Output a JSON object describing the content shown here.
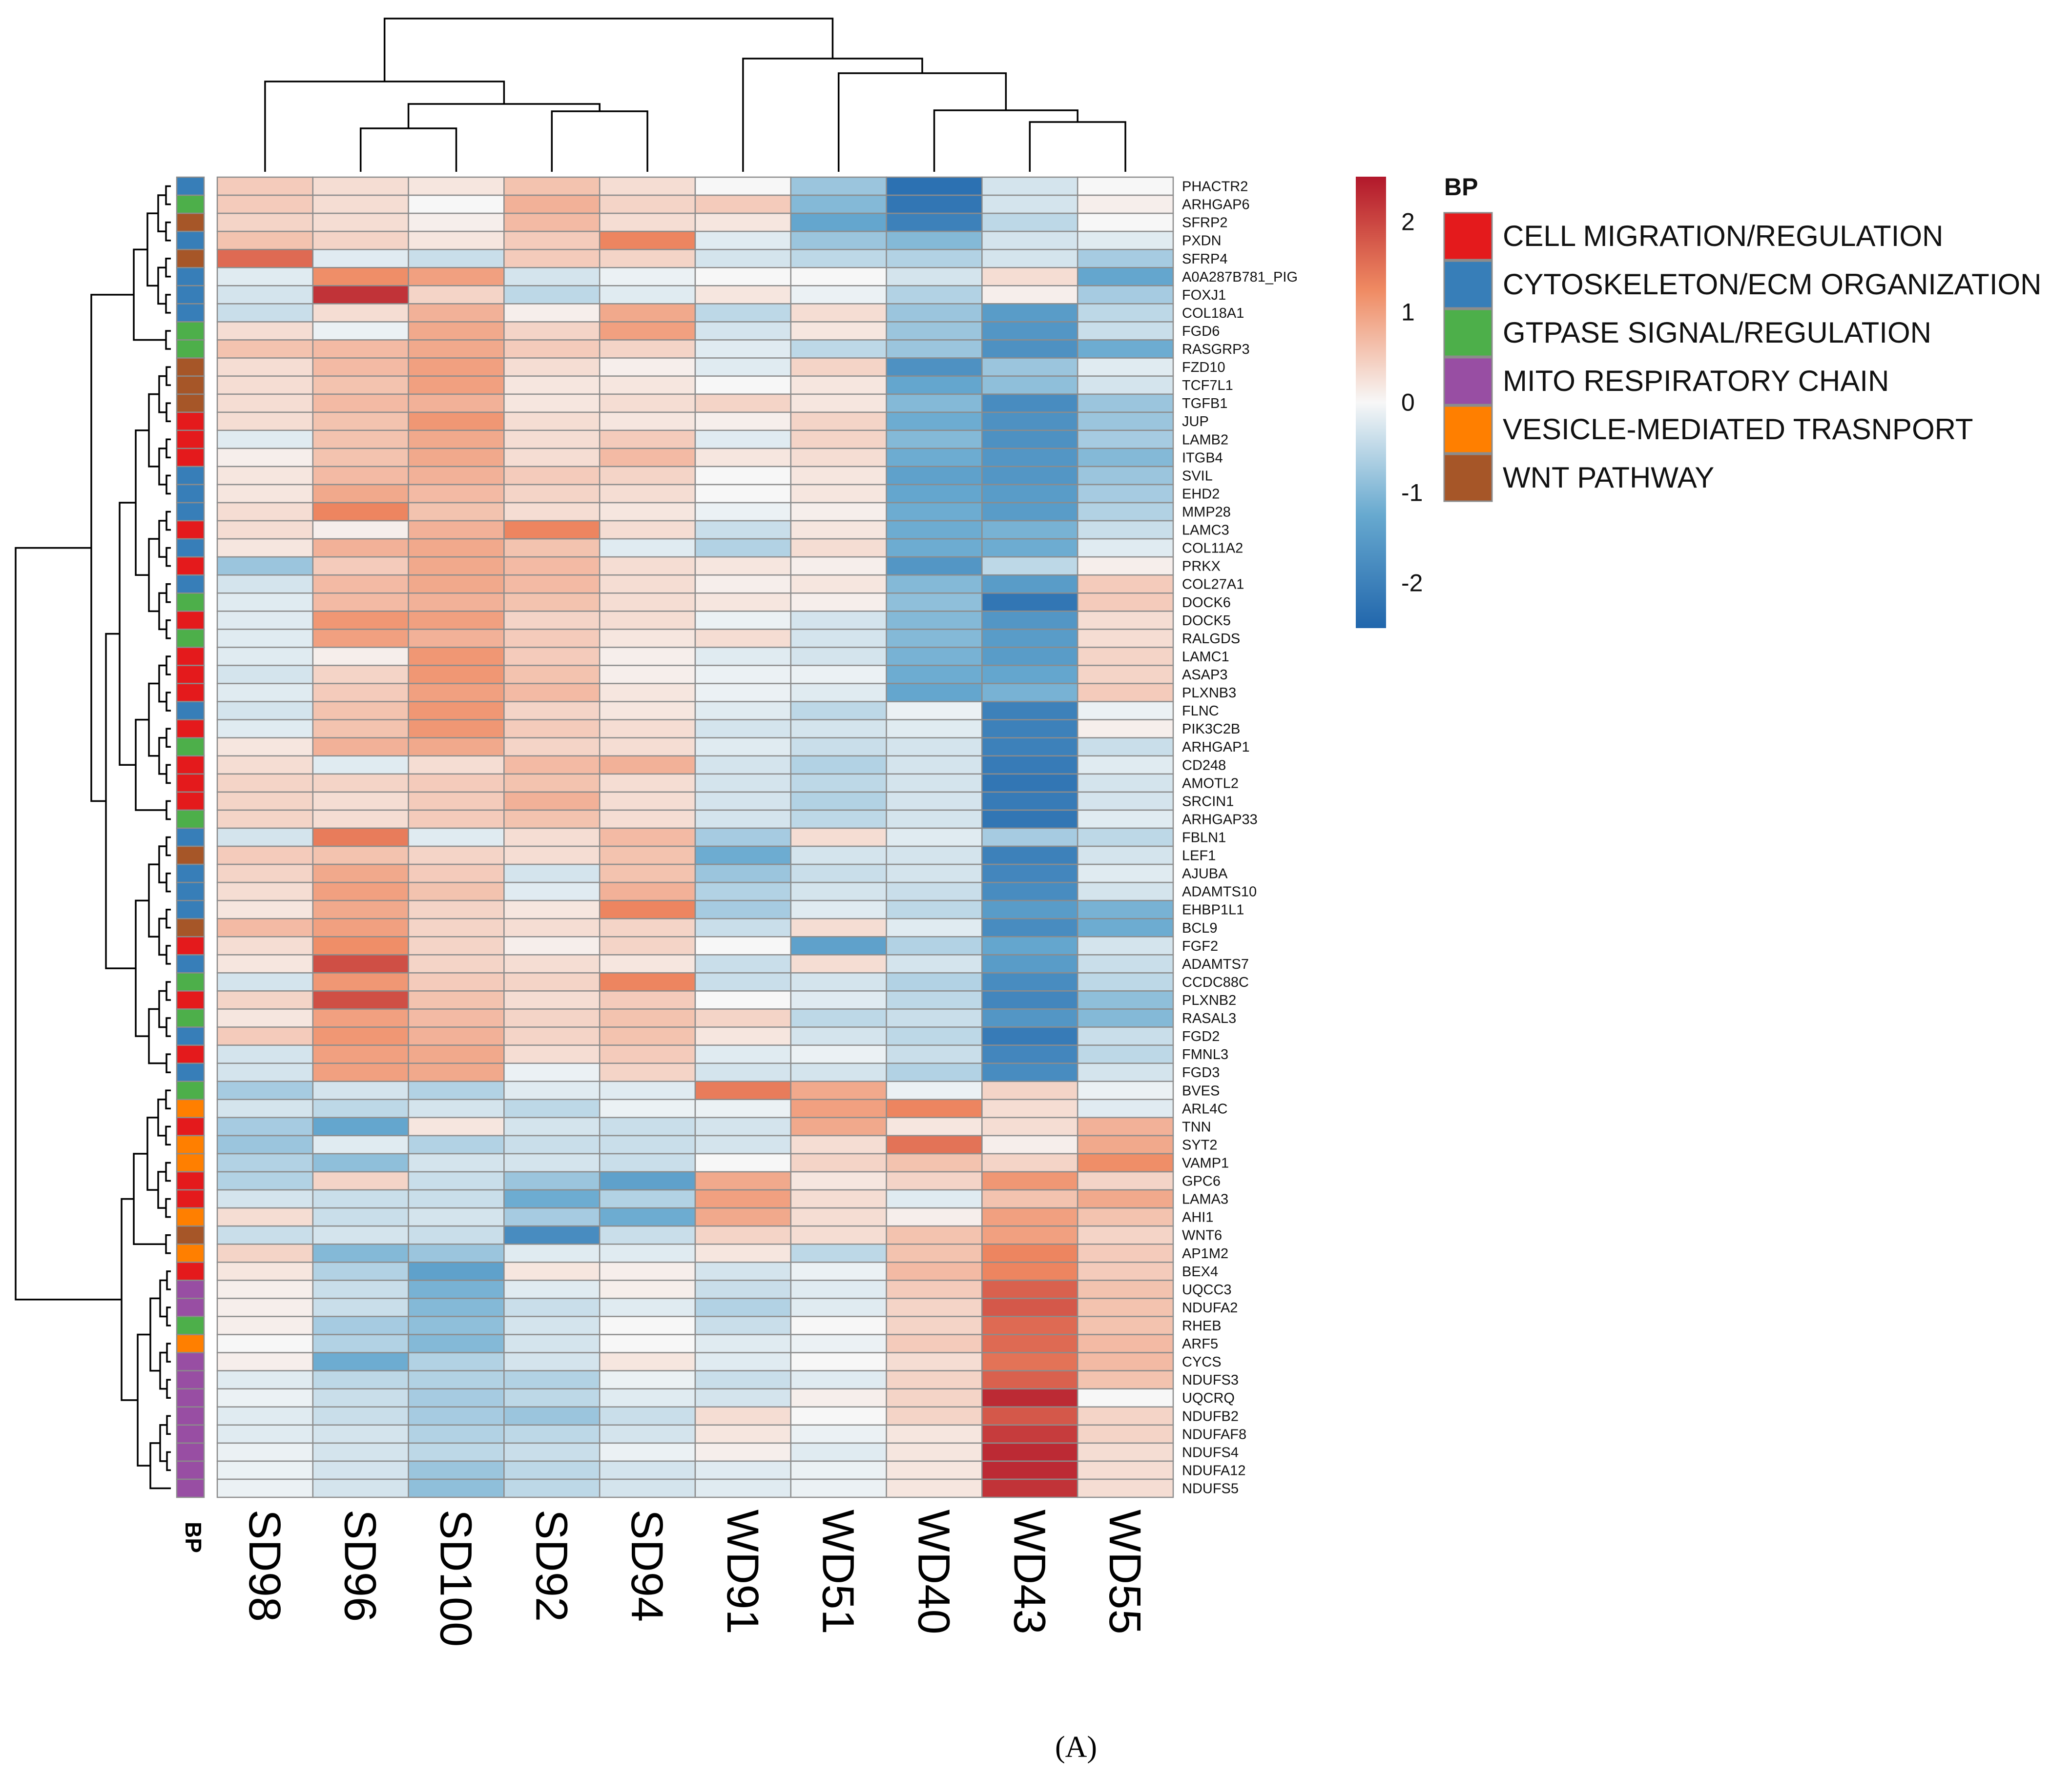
{
  "chart_data": {
    "type": "heatmap",
    "panel_label": "(A)",
    "row_annotation_title": "BP",
    "samples": [
      "SD98",
      "SD96",
      "SD100",
      "SD92",
      "SD94",
      "WD91",
      "WD51",
      "WD40",
      "WD43",
      "WD55"
    ],
    "color_scale": {
      "range": [
        -2.5,
        2.5
      ],
      "ticks": [
        {
          "value": 2,
          "label": "2"
        },
        {
          "value": 1,
          "label": "1"
        },
        {
          "value": 0,
          "label": "0"
        },
        {
          "value": -1,
          "label": "-1"
        },
        {
          "value": -2,
          "label": "-2"
        }
      ],
      "low_color": "#2166ac",
      "mid_color": "#f7f7f7",
      "high_color": "#b2182b"
    },
    "bp_legend": {
      "title": "BP",
      "items": [
        {
          "key": "CM",
          "label": "CELL MIGRATION/REGULATION",
          "color": "#e41a1c"
        },
        {
          "key": "CE",
          "label": "CYTOSKELETON/ECM ORGANIZATION",
          "color": "#377eb8"
        },
        {
          "key": "GT",
          "label": "GTPASE SIGNAL/REGULATION",
          "color": "#4daf4a"
        },
        {
          "key": "MR",
          "label": "MITO RESPIRATORY CHAIN",
          "color": "#984ea3"
        },
        {
          "key": "VM",
          "label": "VESICLE-MEDIATED TRASNPORT",
          "color": "#ff7f00"
        },
        {
          "key": "WN",
          "label": "WNT PATHWAY",
          "color": "#a65628"
        }
      ]
    },
    "rows": [
      {
        "gene": "PHACTR2",
        "bp": "CE",
        "values": [
          0.5,
          0.3,
          0.2,
          0.6,
          0.3,
          0.0,
          -0.8,
          -2.3,
          -0.3,
          0.0
        ]
      },
      {
        "gene": "ARHGAP6",
        "bp": "GT",
        "values": [
          0.5,
          0.3,
          0.0,
          0.8,
          0.4,
          0.5,
          -1.0,
          -2.2,
          -0.3,
          0.1
        ]
      },
      {
        "gene": "SFRP2",
        "bp": "WN",
        "values": [
          0.4,
          0.3,
          0.1,
          0.7,
          0.3,
          0.2,
          -1.3,
          -2.0,
          -0.5,
          0.0
        ]
      },
      {
        "gene": "PXDN",
        "bp": "CE",
        "values": [
          0.6,
          0.4,
          0.2,
          0.5,
          1.3,
          -0.2,
          -0.8,
          -1.0,
          -0.3,
          -0.2
        ]
      },
      {
        "gene": "SFRP4",
        "bp": "WN",
        "values": [
          1.6,
          -0.2,
          -0.4,
          0.5,
          0.4,
          -0.3,
          -0.5,
          -0.6,
          -0.3,
          -0.7
        ]
      },
      {
        "gene": "A0A287B781_PIG",
        "bp": "CE",
        "values": [
          -0.2,
          1.2,
          1.0,
          -0.3,
          -0.1,
          0.0,
          0.0,
          -0.3,
          0.3,
          -1.3
        ]
      },
      {
        "gene": "FOXJ1",
        "bp": "CE",
        "values": [
          -0.3,
          2.2,
          0.4,
          -0.5,
          -0.2,
          0.2,
          -0.1,
          -0.6,
          0.1,
          -0.7
        ]
      },
      {
        "gene": "COL18A1",
        "bp": "CE",
        "values": [
          -0.4,
          0.3,
          0.8,
          0.1,
          0.9,
          -0.5,
          0.3,
          -0.8,
          -1.5,
          -0.5
        ]
      },
      {
        "gene": "FGD6",
        "bp": "GT",
        "values": [
          0.3,
          -0.1,
          0.9,
          0.4,
          1.0,
          -0.3,
          0.2,
          -0.8,
          -1.6,
          -0.4
        ]
      },
      {
        "gene": "RASGRP3",
        "bp": "GT",
        "values": [
          0.6,
          0.7,
          0.9,
          0.5,
          0.4,
          -0.2,
          -0.5,
          -0.8,
          -1.7,
          -1.2
        ]
      },
      {
        "gene": "FZD10",
        "bp": "WN",
        "values": [
          0.3,
          0.7,
          1.0,
          0.3,
          0.1,
          -0.2,
          0.4,
          -1.7,
          -0.8,
          -0.2
        ]
      },
      {
        "gene": "TCF7L1",
        "bp": "WN",
        "values": [
          0.3,
          0.6,
          1.0,
          0.2,
          0.2,
          0.0,
          0.2,
          -1.3,
          -0.9,
          -0.3
        ]
      },
      {
        "gene": "TGFB1",
        "bp": "WN",
        "values": [
          0.3,
          0.7,
          0.8,
          0.2,
          0.3,
          0.4,
          0.2,
          -1.0,
          -1.8,
          -0.8
        ]
      },
      {
        "gene": "JUP",
        "bp": "CM",
        "values": [
          0.3,
          0.6,
          1.1,
          0.3,
          0.2,
          0.1,
          0.4,
          -1.2,
          -1.7,
          -0.8
        ]
      },
      {
        "gene": "LAMB2",
        "bp": "CM",
        "values": [
          -0.2,
          0.6,
          0.9,
          0.3,
          0.5,
          -0.2,
          0.4,
          -1.0,
          -1.7,
          -0.7
        ]
      },
      {
        "gene": "ITGB4",
        "bp": "CM",
        "values": [
          0.1,
          0.6,
          0.9,
          0.3,
          0.7,
          0.2,
          0.3,
          -1.2,
          -1.6,
          -1.0
        ]
      },
      {
        "gene": "SVIL",
        "bp": "CE",
        "values": [
          0.2,
          0.7,
          0.8,
          0.5,
          0.4,
          0.0,
          0.2,
          -1.4,
          -1.6,
          -0.8
        ]
      },
      {
        "gene": "EHD2",
        "bp": "CE",
        "values": [
          0.2,
          0.9,
          0.7,
          0.4,
          0.3,
          0.0,
          0.2,
          -1.3,
          -1.5,
          -0.7
        ]
      },
      {
        "gene": "MMP28",
        "bp": "CE",
        "values": [
          0.3,
          1.3,
          0.6,
          0.3,
          0.2,
          -0.1,
          0.1,
          -1.2,
          -1.5,
          -0.6
        ]
      },
      {
        "gene": "LAMC3",
        "bp": "CM",
        "values": [
          0.3,
          0.1,
          0.8,
          1.3,
          0.3,
          -0.4,
          0.2,
          -1.2,
          -1.1,
          -0.4
        ]
      },
      {
        "gene": "COL11A2",
        "bp": "CE",
        "values": [
          0.2,
          0.8,
          0.9,
          0.6,
          -0.2,
          -0.6,
          0.3,
          -1.2,
          -1.2,
          -0.2
        ]
      },
      {
        "gene": "PRKX",
        "bp": "CM",
        "values": [
          -0.8,
          0.5,
          0.9,
          0.7,
          0.3,
          0.2,
          0.1,
          -1.6,
          -0.5,
          0.1
        ]
      },
      {
        "gene": "COL27A1",
        "bp": "CE",
        "values": [
          -0.3,
          0.7,
          0.9,
          0.7,
          0.3,
          0.1,
          0.2,
          -1.0,
          -1.5,
          0.5
        ]
      },
      {
        "gene": "DOCK6",
        "bp": "GT",
        "values": [
          -0.2,
          0.7,
          0.8,
          0.6,
          0.3,
          0.2,
          0.1,
          -0.9,
          -2.2,
          0.5
        ]
      },
      {
        "gene": "DOCK5",
        "bp": "CM",
        "values": [
          -0.2,
          1.1,
          1.0,
          0.4,
          0.3,
          -0.1,
          -0.3,
          -1.0,
          -1.6,
          0.3
        ]
      },
      {
        "gene": "RALGDS",
        "bp": "GT",
        "values": [
          -0.2,
          1.0,
          0.8,
          0.5,
          0.2,
          0.3,
          -0.3,
          -1.0,
          -1.5,
          0.3
        ]
      },
      {
        "gene": "LAMC1",
        "bp": "CM",
        "values": [
          -0.2,
          0.1,
          1.1,
          0.5,
          0.1,
          -0.2,
          -0.3,
          -1.1,
          -1.5,
          0.4
        ]
      },
      {
        "gene": "ASAP3",
        "bp": "CM",
        "values": [
          -0.3,
          0.4,
          1.1,
          0.6,
          0.1,
          -0.1,
          -0.1,
          -1.2,
          -1.3,
          0.4
        ]
      },
      {
        "gene": "PLXNB3",
        "bp": "CM",
        "values": [
          -0.2,
          0.5,
          1.0,
          0.7,
          0.2,
          -0.1,
          -0.2,
          -1.3,
          -1.1,
          0.5
        ]
      },
      {
        "gene": "FLNC",
        "bp": "CE",
        "values": [
          -0.3,
          0.6,
          1.1,
          0.4,
          0.2,
          -0.2,
          -0.5,
          -0.1,
          -2.0,
          -0.1
        ]
      },
      {
        "gene": "PIK3C2B",
        "bp": "CM",
        "values": [
          -0.2,
          0.6,
          1.1,
          0.5,
          0.3,
          -0.3,
          -0.3,
          -0.2,
          -2.0,
          0.1
        ]
      },
      {
        "gene": "ARHGAP1",
        "bp": "GT",
        "values": [
          0.2,
          0.8,
          0.9,
          0.4,
          0.3,
          -0.2,
          -0.4,
          -0.3,
          -2.0,
          -0.4
        ]
      },
      {
        "gene": "CD248",
        "bp": "CM",
        "values": [
          0.3,
          -0.2,
          0.3,
          0.7,
          0.8,
          -0.3,
          -0.6,
          -0.3,
          -2.1,
          -0.2
        ]
      },
      {
        "gene": "AMOTL2",
        "bp": "CM",
        "values": [
          0.4,
          0.4,
          0.5,
          0.6,
          0.3,
          -0.3,
          -0.5,
          -0.3,
          -2.2,
          -0.3
        ]
      },
      {
        "gene": "SRCIN1",
        "bp": "CM",
        "values": [
          0.4,
          0.3,
          0.5,
          0.8,
          0.3,
          -0.3,
          -0.6,
          -0.3,
          -2.1,
          -0.3
        ]
      },
      {
        "gene": "ARHGAP33",
        "bp": "GT",
        "values": [
          0.4,
          0.3,
          0.5,
          0.6,
          0.3,
          -0.3,
          -0.5,
          -0.3,
          -2.2,
          -0.2
        ]
      },
      {
        "gene": "FBLN1",
        "bp": "CE",
        "values": [
          -0.3,
          1.4,
          -0.2,
          0.3,
          0.7,
          -0.7,
          0.3,
          -0.2,
          -0.7,
          -0.5
        ]
      },
      {
        "gene": "LEF1",
        "bp": "WN",
        "values": [
          0.5,
          0.6,
          0.4,
          0.3,
          0.6,
          -1.2,
          -0.3,
          -0.3,
          -2.0,
          -0.3
        ]
      },
      {
        "gene": "AJUBA",
        "bp": "CE",
        "values": [
          0.4,
          0.9,
          0.5,
          -0.3,
          0.6,
          -0.8,
          -0.4,
          -0.3,
          -1.9,
          -0.2
        ]
      },
      {
        "gene": "ADAMTS10",
        "bp": "CE",
        "values": [
          0.3,
          1.0,
          0.6,
          -0.2,
          0.8,
          -0.6,
          -0.3,
          -0.4,
          -1.8,
          -0.3
        ]
      },
      {
        "gene": "EHBP1L1",
        "bp": "CE",
        "values": [
          0.2,
          0.9,
          0.4,
          0.2,
          1.3,
          -0.7,
          -0.2,
          -0.5,
          -1.5,
          -1.1
        ]
      },
      {
        "gene": "BCL9",
        "bp": "WN",
        "values": [
          0.7,
          1.0,
          0.4,
          0.3,
          0.4,
          -0.4,
          0.3,
          -0.2,
          -1.8,
          -1.2
        ]
      },
      {
        "gene": "FGF2",
        "bp": "CM",
        "values": [
          0.3,
          1.2,
          0.4,
          0.1,
          0.4,
          0.0,
          -1.4,
          -0.6,
          -1.3,
          -0.3
        ]
      },
      {
        "gene": "ADAMTS7",
        "bp": "CE",
        "values": [
          0.2,
          1.9,
          0.4,
          0.3,
          0.2,
          -0.4,
          0.3,
          -0.3,
          -1.5,
          -0.4
        ]
      },
      {
        "gene": "CCDC88C",
        "bp": "GT",
        "values": [
          -0.3,
          1.1,
          0.5,
          0.4,
          1.3,
          -0.4,
          -0.3,
          -0.6,
          -1.8,
          -0.5
        ]
      },
      {
        "gene": "PLXNB2",
        "bp": "CM",
        "values": [
          0.4,
          1.9,
          0.6,
          0.3,
          0.5,
          0.0,
          -0.2,
          -0.5,
          -1.9,
          -0.9
        ]
      },
      {
        "gene": "RASAL3",
        "bp": "GT",
        "values": [
          0.2,
          1.0,
          0.7,
          0.4,
          0.6,
          0.4,
          -0.5,
          -0.4,
          -1.6,
          -1.0
        ]
      },
      {
        "gene": "FGD2",
        "bp": "CE",
        "values": [
          0.5,
          1.1,
          0.8,
          0.4,
          0.6,
          0.2,
          -0.3,
          -0.5,
          -2.1,
          -0.4
        ]
      },
      {
        "gene": "FMNL3",
        "bp": "CM",
        "values": [
          -0.3,
          1.0,
          0.9,
          0.3,
          0.5,
          -0.2,
          -0.1,
          -0.4,
          -1.9,
          -0.5
        ]
      },
      {
        "gene": "FGD3",
        "bp": "CE",
        "values": [
          -0.3,
          1.0,
          0.9,
          -0.1,
          0.4,
          -0.3,
          -0.3,
          -0.6,
          -1.8,
          -0.3
        ]
      },
      {
        "gene": "BVES",
        "bp": "GT",
        "values": [
          -0.7,
          -0.3,
          -0.6,
          -0.2,
          -0.2,
          1.4,
          0.9,
          -0.1,
          0.4,
          -0.1
        ]
      },
      {
        "gene": "ARL4C",
        "bp": "VM",
        "values": [
          -0.3,
          -0.5,
          -0.3,
          -0.5,
          -0.1,
          -0.1,
          1.0,
          1.3,
          0.3,
          -0.2
        ]
      },
      {
        "gene": "TNN",
        "bp": "CM",
        "values": [
          -0.7,
          -1.3,
          0.2,
          -0.3,
          -0.4,
          -0.3,
          0.9,
          0.2,
          0.3,
          0.8
        ]
      },
      {
        "gene": "SYT2",
        "bp": "VM",
        "values": [
          -0.8,
          -0.2,
          -0.6,
          -0.4,
          -0.4,
          -0.3,
          0.3,
          1.5,
          0.1,
          0.9
        ]
      },
      {
        "gene": "VAMP1",
        "bp": "VM",
        "values": [
          -0.6,
          -0.9,
          -0.3,
          -0.3,
          -0.4,
          0.0,
          0.4,
          0.6,
          0.4,
          1.2
        ]
      },
      {
        "gene": "GPC6",
        "bp": "CM",
        "values": [
          -0.6,
          0.4,
          -0.4,
          -0.8,
          -1.4,
          0.9,
          0.2,
          0.4,
          1.1,
          0.4
        ]
      },
      {
        "gene": "LAMA3",
        "bp": "CM",
        "values": [
          -0.3,
          -0.4,
          -0.4,
          -1.2,
          -0.6,
          1.0,
          0.3,
          -0.2,
          0.6,
          0.9
        ]
      },
      {
        "gene": "AHI1",
        "bp": "VM",
        "values": [
          0.3,
          -0.4,
          -0.3,
          -0.7,
          -1.2,
          0.9,
          0.3,
          0.1,
          1.0,
          0.6
        ]
      },
      {
        "gene": "WNT6",
        "bp": "WN",
        "values": [
          -0.4,
          -0.3,
          -0.4,
          -1.8,
          -0.4,
          0.4,
          0.3,
          0.6,
          1.0,
          0.4
        ]
      },
      {
        "gene": "AP1M2",
        "bp": "VM",
        "values": [
          0.4,
          -1.0,
          -0.8,
          -0.2,
          -0.2,
          0.2,
          -0.5,
          0.6,
          1.3,
          0.5
        ]
      },
      {
        "gene": "BEX4",
        "bp": "CM",
        "values": [
          0.2,
          -0.6,
          -1.4,
          0.2,
          0.1,
          -0.3,
          -0.1,
          0.7,
          1.3,
          0.5
        ]
      },
      {
        "gene": "UQCC3",
        "bp": "MR",
        "values": [
          0.1,
          -0.4,
          -1.1,
          -0.2,
          0.1,
          -0.4,
          -0.2,
          0.5,
          1.7,
          0.6
        ]
      },
      {
        "gene": "NDUFA2",
        "bp": "MR",
        "values": [
          0.1,
          -0.4,
          -1.0,
          -0.4,
          -0.2,
          -0.6,
          -0.2,
          0.4,
          1.8,
          0.6
        ]
      },
      {
        "gene": "RHEB",
        "bp": "GT",
        "values": [
          0.1,
          -0.7,
          -0.9,
          -0.3,
          0.0,
          -0.4,
          0.0,
          0.4,
          1.6,
          0.6
        ]
      },
      {
        "gene": "ARF5",
        "bp": "VM",
        "values": [
          0.0,
          -0.6,
          -1.0,
          -0.3,
          0.0,
          -0.2,
          -0.1,
          0.5,
          1.6,
          0.7
        ]
      },
      {
        "gene": "CYCS",
        "bp": "MR",
        "values": [
          0.1,
          -1.2,
          -0.6,
          -0.3,
          0.2,
          -0.2,
          0.0,
          0.3,
          1.5,
          0.7
        ]
      },
      {
        "gene": "NDUFS3",
        "bp": "MR",
        "values": [
          -0.2,
          -0.5,
          -0.6,
          -0.6,
          -0.1,
          -0.4,
          -0.2,
          0.4,
          1.7,
          0.6
        ]
      },
      {
        "gene": "UQCRQ",
        "bp": "MR",
        "values": [
          -0.1,
          -0.4,
          -0.7,
          -0.5,
          -0.2,
          -0.3,
          0.1,
          0.4,
          2.3,
          0.0
        ]
      },
      {
        "gene": "NDUFB2",
        "bp": "MR",
        "values": [
          -0.2,
          -0.4,
          -0.7,
          -0.8,
          -0.4,
          0.3,
          0.0,
          0.4,
          1.8,
          0.4
        ]
      },
      {
        "gene": "NDUFAF8",
        "bp": "MR",
        "values": [
          -0.2,
          -0.3,
          -0.6,
          -0.5,
          -0.3,
          0.2,
          -0.1,
          0.2,
          2.1,
          0.4
        ]
      },
      {
        "gene": "NDUFS4",
        "bp": "MR",
        "values": [
          -0.1,
          -0.3,
          -0.5,
          -0.4,
          -0.1,
          0.1,
          -0.2,
          0.2,
          2.3,
          0.3
        ]
      },
      {
        "gene": "NDUFA12",
        "bp": "MR",
        "values": [
          -0.1,
          -0.3,
          -0.8,
          -0.5,
          -0.3,
          -0.2,
          -0.1,
          0.2,
          2.3,
          0.3
        ]
      },
      {
        "gene": "NDUFS5",
        "bp": "MR",
        "values": [
          -0.1,
          -0.3,
          -0.9,
          -0.5,
          -0.3,
          -0.2,
          -0.1,
          0.2,
          2.2,
          0.3
        ]
      }
    ]
  }
}
